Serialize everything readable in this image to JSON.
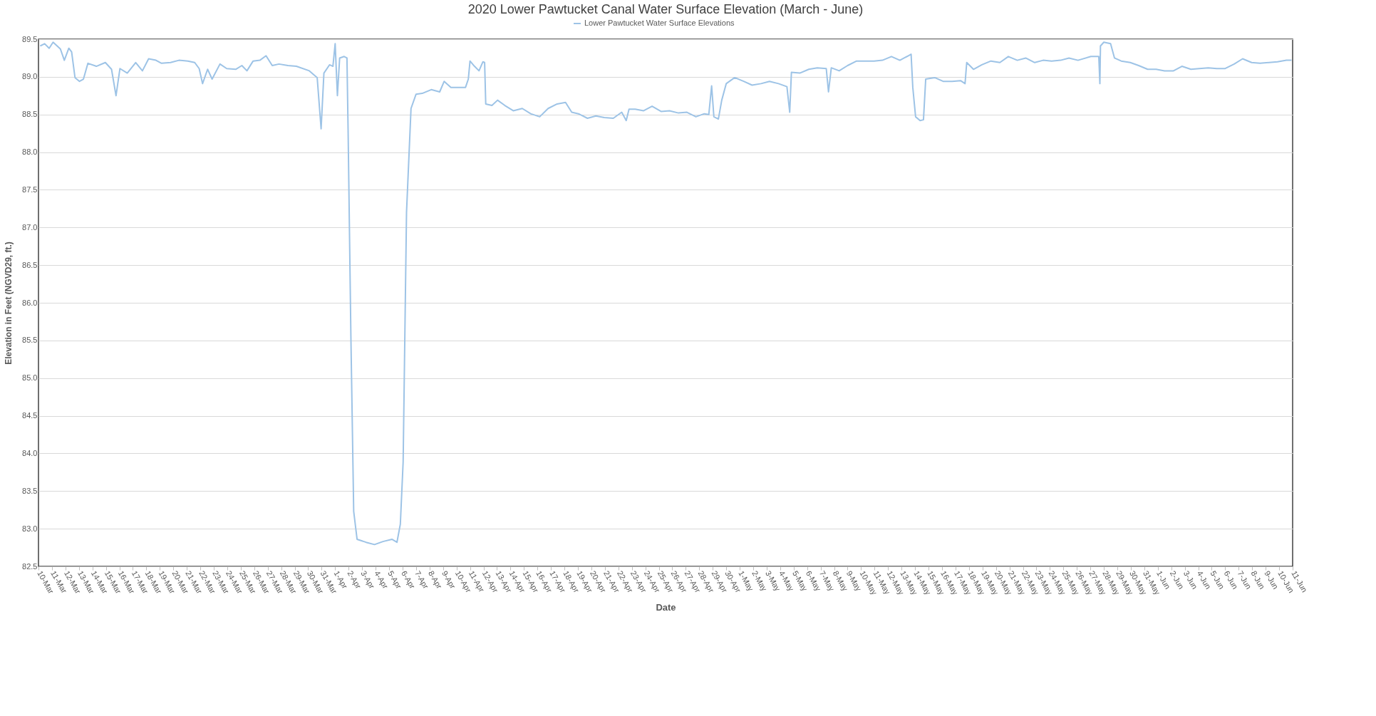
{
  "chart_data": {
    "type": "line",
    "title": "2020 Lower Pawtucket Canal Water Surface Elevation (March - June)",
    "xlabel": "Date",
    "ylabel": "Elevation in Feet (NGVD29, ft.)",
    "legend": "top",
    "grid": "y",
    "ylim": [
      82.5,
      89.5
    ],
    "yticks": [
      {
        "value": 82.5,
        "label": "82.5"
      },
      {
        "value": 83,
        "label": "83.0"
      },
      {
        "value": 83.5,
        "label": "83.5"
      },
      {
        "value": 84,
        "label": "84.0"
      },
      {
        "value": 84.5,
        "label": "84.5"
      },
      {
        "value": 85,
        "label": "85.0"
      },
      {
        "value": 85.5,
        "label": "85.5"
      },
      {
        "value": 86,
        "label": "86.0"
      },
      {
        "value": 86.5,
        "label": "86.5"
      },
      {
        "value": 87,
        "label": "87.0"
      },
      {
        "value": 87.5,
        "label": "87.5"
      },
      {
        "value": 88,
        "label": "88.0"
      },
      {
        "value": 88.5,
        "label": "88.5"
      },
      {
        "value": 89,
        "label": "89.0"
      },
      {
        "value": 89.5,
        "label": "89.5"
      }
    ],
    "xlim": [
      "2020-03-10",
      "2020-06-11"
    ],
    "xticks": [
      {
        "value": "2020-03-10",
        "label": "10-Mar"
      },
      {
        "value": "2020-03-11",
        "label": "11-Mar"
      },
      {
        "value": "2020-03-12",
        "label": "12-Mar"
      },
      {
        "value": "2020-03-13",
        "label": "13-Mar"
      },
      {
        "value": "2020-03-14",
        "label": "14-Mar"
      },
      {
        "value": "2020-03-15",
        "label": "15-Mar"
      },
      {
        "value": "2020-03-16",
        "label": "16-Mar"
      },
      {
        "value": "2020-03-17",
        "label": "17-Mar"
      },
      {
        "value": "2020-03-18",
        "label": "18-Mar"
      },
      {
        "value": "2020-03-19",
        "label": "19-Mar"
      },
      {
        "value": "2020-03-20",
        "label": "20-Mar"
      },
      {
        "value": "2020-03-21",
        "label": "21-Mar"
      },
      {
        "value": "2020-03-22",
        "label": "22-Mar"
      },
      {
        "value": "2020-03-23",
        "label": "23-Mar"
      },
      {
        "value": "2020-03-24",
        "label": "24-Mar"
      },
      {
        "value": "2020-03-25",
        "label": "25-Mar"
      },
      {
        "value": "2020-03-26",
        "label": "26-Mar"
      },
      {
        "value": "2020-03-27",
        "label": "27-Mar"
      },
      {
        "value": "2020-03-28",
        "label": "28-Mar"
      },
      {
        "value": "2020-03-29",
        "label": "29-Mar"
      },
      {
        "value": "2020-03-30",
        "label": "30-Mar"
      },
      {
        "value": "2020-03-31",
        "label": "31-Mar"
      },
      {
        "value": "2020-04-01",
        "label": "1-Apr"
      },
      {
        "value": "2020-04-02",
        "label": "2-Apr"
      },
      {
        "value": "2020-04-03",
        "label": "3-Apr"
      },
      {
        "value": "2020-04-04",
        "label": "4-Apr"
      },
      {
        "value": "2020-04-05",
        "label": "5-Apr"
      },
      {
        "value": "2020-04-06",
        "label": "6-Apr"
      },
      {
        "value": "2020-04-07",
        "label": "7-Apr"
      },
      {
        "value": "2020-04-08",
        "label": "8-Apr"
      },
      {
        "value": "2020-04-09",
        "label": "9-Apr"
      },
      {
        "value": "2020-04-10",
        "label": "10-Apr"
      },
      {
        "value": "2020-04-11",
        "label": "11-Apr"
      },
      {
        "value": "2020-04-12",
        "label": "12-Apr"
      },
      {
        "value": "2020-04-13",
        "label": "13-Apr"
      },
      {
        "value": "2020-04-14",
        "label": "14-Apr"
      },
      {
        "value": "2020-04-15",
        "label": "15-Apr"
      },
      {
        "value": "2020-04-16",
        "label": "16-Apr"
      },
      {
        "value": "2020-04-17",
        "label": "17-Apr"
      },
      {
        "value": "2020-04-18",
        "label": "18-Apr"
      },
      {
        "value": "2020-04-19",
        "label": "19-Apr"
      },
      {
        "value": "2020-04-20",
        "label": "20-Apr"
      },
      {
        "value": "2020-04-21",
        "label": "21-Apr"
      },
      {
        "value": "2020-04-22",
        "label": "22-Apr"
      },
      {
        "value": "2020-04-23",
        "label": "23-Apr"
      },
      {
        "value": "2020-04-24",
        "label": "24-Apr"
      },
      {
        "value": "2020-04-25",
        "label": "25-Apr"
      },
      {
        "value": "2020-04-26",
        "label": "26-Apr"
      },
      {
        "value": "2020-04-27",
        "label": "27-Apr"
      },
      {
        "value": "2020-04-28",
        "label": "28-Apr"
      },
      {
        "value": "2020-04-29",
        "label": "29-Apr"
      },
      {
        "value": "2020-04-30",
        "label": "30-Apr"
      },
      {
        "value": "2020-05-01",
        "label": "1-May"
      },
      {
        "value": "2020-05-02",
        "label": "2-May"
      },
      {
        "value": "2020-05-03",
        "label": "3-May"
      },
      {
        "value": "2020-05-04",
        "label": "4-May"
      },
      {
        "value": "2020-05-05",
        "label": "5-May"
      },
      {
        "value": "2020-05-06",
        "label": "6-May"
      },
      {
        "value": "2020-05-07",
        "label": "7-May"
      },
      {
        "value": "2020-05-08",
        "label": "8-May"
      },
      {
        "value": "2020-05-09",
        "label": "9-May"
      },
      {
        "value": "2020-05-10",
        "label": "10-May"
      },
      {
        "value": "2020-05-11",
        "label": "11-May"
      },
      {
        "value": "2020-05-12",
        "label": "12-May"
      },
      {
        "value": "2020-05-13",
        "label": "13-May"
      },
      {
        "value": "2020-05-14",
        "label": "14-May"
      },
      {
        "value": "2020-05-15",
        "label": "15-May"
      },
      {
        "value": "2020-05-16",
        "label": "16-May"
      },
      {
        "value": "2020-05-17",
        "label": "17-May"
      },
      {
        "value": "2020-05-18",
        "label": "18-May"
      },
      {
        "value": "2020-05-19",
        "label": "19-May"
      },
      {
        "value": "2020-05-20",
        "label": "20-May"
      },
      {
        "value": "2020-05-21",
        "label": "21-May"
      },
      {
        "value": "2020-05-22",
        "label": "22-May"
      },
      {
        "value": "2020-05-23",
        "label": "23-May"
      },
      {
        "value": "2020-05-24",
        "label": "24-May"
      },
      {
        "value": "2020-05-25",
        "label": "25-May"
      },
      {
        "value": "2020-05-26",
        "label": "26-May"
      },
      {
        "value": "2020-05-27",
        "label": "27-May"
      },
      {
        "value": "2020-05-28",
        "label": "28-May"
      },
      {
        "value": "2020-05-29",
        "label": "29-May"
      },
      {
        "value": "2020-05-30",
        "label": "30-May"
      },
      {
        "value": "2020-05-31",
        "label": "31-May"
      },
      {
        "value": "2020-06-01",
        "label": "1-Jun"
      },
      {
        "value": "2020-06-02",
        "label": "2-Jun"
      },
      {
        "value": "2020-06-03",
        "label": "3-Jun"
      },
      {
        "value": "2020-06-04",
        "label": "4-Jun"
      },
      {
        "value": "2020-06-05",
        "label": "5-Jun"
      },
      {
        "value": "2020-06-06",
        "label": "6-Jun"
      },
      {
        "value": "2020-06-07",
        "label": "7-Jun"
      },
      {
        "value": "2020-06-08",
        "label": "8-Jun"
      },
      {
        "value": "2020-06-09",
        "label": "9-Jun"
      },
      {
        "value": "2020-06-10",
        "label": "10-Jun"
      },
      {
        "value": "2020-06-11",
        "label": "11-Jun"
      }
    ],
    "series": [
      {
        "name": "Lower Pawtucket Water Surface Elevations",
        "color": "#9dc3e6",
        "line_style": "solid",
        "marker": "none",
        "x": [
          "2020-03-10T03:00",
          "2020-03-10T11:00",
          "2020-03-10T19:00",
          "2020-03-11T02:00",
          "2020-03-11T15:00",
          "2020-03-11T22:00",
          "2020-03-12T06:00",
          "2020-03-12T11:00",
          "2020-03-12T17:00",
          "2020-03-13T01:00",
          "2020-03-13T08:00",
          "2020-03-13T16:00",
          "2020-03-14T07:00",
          "2020-03-14T23:00",
          "2020-03-15T10:00",
          "2020-03-15T18:00",
          "2020-03-16T01:00",
          "2020-03-16T14:00",
          "2020-03-17T05:00",
          "2020-03-17T17:00",
          "2020-03-18T04:00",
          "2020-03-18T17:00",
          "2020-03-19T03:00",
          "2020-03-19T19:00",
          "2020-03-20T10:00",
          "2020-03-21T02:00",
          "2020-03-21T14:00",
          "2020-03-21T22:00",
          "2020-03-22T04:00",
          "2020-03-22T13:00",
          "2020-03-22T21:00",
          "2020-03-23T11:00",
          "2020-03-23T23:00",
          "2020-03-24T15:00",
          "2020-03-25T02:00",
          "2020-03-25T11:00",
          "2020-03-25T22:00",
          "2020-03-26T10:00",
          "2020-03-26T21:00",
          "2020-03-27T08:00",
          "2020-03-27T20:00",
          "2020-03-28T12:00",
          "2020-03-29T03:00",
          "2020-03-30T02:00",
          "2020-03-30T16:00",
          "2020-03-30T23:00",
          "2020-03-31T04:00",
          "2020-03-31T14:00",
          "2020-03-31T20:00",
          "2020-04-01T00:00",
          "2020-04-01T04:00",
          "2020-04-01T08:00",
          "2020-04-01T16:00",
          "2020-04-01T21:00",
          "2020-04-01T23:00",
          "2020-04-02T04:00",
          "2020-04-02T09:00",
          "2020-04-02T15:00",
          "2020-04-03T07:00",
          "2020-04-03T22:00",
          "2020-04-04T13:00",
          "2020-04-05T05:00",
          "2020-04-05T14:00",
          "2020-04-05T20:00",
          "2020-04-06T01:00",
          "2020-04-06T07:00",
          "2020-04-06T15:00",
          "2020-04-07T00:00",
          "2020-04-07T11:00",
          "2020-04-08T03:00",
          "2020-04-08T18:00",
          "2020-04-09T02:00",
          "2020-04-09T14:00",
          "2020-04-10T04:00",
          "2020-04-10T16:00",
          "2020-04-10T21:00",
          "2020-04-11T00:00",
          "2020-04-11T08:00",
          "2020-04-11T16:00",
          "2020-04-11T23:00",
          "2020-04-12T02:00",
          "2020-04-12T04:00",
          "2020-04-12T15:00",
          "2020-04-13T01:00",
          "2020-04-13T14:00",
          "2020-04-14T05:00",
          "2020-04-14T21:00",
          "2020-04-15T12:00",
          "2020-04-16T04:00",
          "2020-04-16T19:00",
          "2020-04-17T11:00",
          "2020-04-18T02:00",
          "2020-04-18T13:00",
          "2020-04-19T01:00",
          "2020-04-19T17:00",
          "2020-04-20T08:00",
          "2020-04-20T23:00",
          "2020-04-21T15:00",
          "2020-04-22T06:00",
          "2020-04-22T14:00",
          "2020-04-22T19:00",
          "2020-04-23T06:00",
          "2020-04-23T21:00",
          "2020-04-24T12:00",
          "2020-04-25T04:00",
          "2020-04-25T19:00",
          "2020-04-26T11:00",
          "2020-04-27T02:00",
          "2020-04-27T18:00",
          "2020-04-28T09:00",
          "2020-04-28T17:00",
          "2020-04-28T22:00",
          "2020-04-29T02:00",
          "2020-04-29T10:00",
          "2020-04-29T16:00",
          "2020-04-30T00:00",
          "2020-04-30T15:00",
          "2020-05-01T07:00",
          "2020-05-01T22:00",
          "2020-05-02T14:00",
          "2020-05-03T05:00",
          "2020-05-03T21:00",
          "2020-05-04T12:00",
          "2020-05-04T17:00",
          "2020-05-04T20:00",
          "2020-05-05T11:00",
          "2020-05-06T03:00",
          "2020-05-06T18:00",
          "2020-05-07T10:00",
          "2020-05-07T14:00",
          "2020-05-07T19:00",
          "2020-05-08T09:00",
          "2020-05-09T00:00",
          "2020-05-09T16:00",
          "2020-05-10T07:00",
          "2020-05-10T23:00",
          "2020-05-11T14:00",
          "2020-05-12T06:00",
          "2020-05-12T21:00",
          "2020-05-13T12:00",
          "2020-05-13T17:00",
          "2020-05-13T20:00",
          "2020-05-14T01:00",
          "2020-05-14T09:00",
          "2020-05-14T15:00",
          "2020-05-14T19:00",
          "2020-05-15T11:00",
          "2020-05-16T02:00",
          "2020-05-16T18:00",
          "2020-05-17T09:00",
          "2020-05-17T17:00",
          "2020-05-17T20:00",
          "2020-05-18T08:00",
          "2020-05-18T23:00",
          "2020-05-19T15:00",
          "2020-05-20T07:00",
          "2020-05-20T22:00",
          "2020-05-21T14:00",
          "2020-05-22T05:00",
          "2020-05-22T21:00",
          "2020-05-23T12:00",
          "2020-05-24T03:00",
          "2020-05-24T19:00",
          "2020-05-25T10:00",
          "2020-05-26T02:00",
          "2020-05-27T01:00",
          "2020-05-27T15:00",
          "2020-05-27T17:00",
          "2020-05-27T18:00",
          "2020-05-28T00:00",
          "2020-05-28T12:00",
          "2020-05-28T19:00",
          "2020-05-29T07:00",
          "2020-05-29T23:00",
          "2020-05-30T14:00",
          "2020-05-31T06:00",
          "2020-05-31T21:00",
          "2020-06-01T12:00",
          "2020-06-02T04:00",
          "2020-06-02T19:00",
          "2020-06-03T11:00",
          "2020-06-04T02:00",
          "2020-06-04T18:00",
          "2020-06-05T09:00",
          "2020-06-06T00:00",
          "2020-06-06T16:00",
          "2020-06-07T07:00",
          "2020-06-07T23:00",
          "2020-06-08T14:00",
          "2020-06-09T06:00",
          "2020-06-09T21:00",
          "2020-06-10T13:00",
          "2020-06-10T22:00"
        ],
        "values": [
          89.41,
          89.44,
          89.38,
          89.46,
          89.37,
          89.22,
          89.38,
          89.33,
          88.99,
          88.94,
          88.97,
          89.18,
          89.14,
          89.19,
          89.1,
          88.75,
          89.11,
          89.05,
          89.19,
          89.08,
          89.24,
          89.22,
          89.18,
          89.19,
          89.22,
          89.21,
          89.19,
          89.11,
          88.91,
          89.1,
          88.97,
          89.17,
          89.11,
          89.1,
          89.15,
          89.08,
          89.21,
          89.22,
          89.28,
          89.15,
          89.17,
          89.15,
          89.14,
          89.08,
          88.99,
          88.31,
          89.05,
          89.16,
          89.14,
          89.44,
          88.75,
          89.25,
          89.27,
          89.25,
          88.31,
          85.55,
          83.23,
          82.86,
          82.82,
          82.79,
          82.83,
          82.86,
          82.82,
          83.06,
          83.89,
          87.2,
          88.58,
          88.77,
          88.78,
          88.83,
          88.8,
          88.94,
          88.86,
          88.86,
          88.86,
          88.97,
          89.21,
          89.14,
          89.08,
          89.2,
          89.19,
          88.64,
          88.62,
          88.69,
          88.62,
          88.55,
          88.58,
          88.51,
          88.47,
          88.58,
          88.64,
          88.66,
          88.53,
          88.51,
          88.45,
          88.48,
          88.46,
          88.45,
          88.53,
          88.42,
          88.57,
          88.57,
          88.55,
          88.61,
          88.54,
          88.55,
          88.52,
          88.53,
          88.47,
          88.51,
          88.5,
          88.88,
          88.47,
          88.44,
          88.69,
          88.91,
          88.99,
          88.94,
          88.89,
          88.91,
          88.94,
          88.91,
          88.87,
          88.53,
          89.06,
          89.05,
          89.1,
          89.12,
          89.11,
          88.8,
          89.12,
          89.08,
          89.15,
          89.21,
          89.21,
          89.21,
          89.22,
          89.27,
          89.22,
          89.28,
          89.3,
          88.86,
          88.47,
          88.42,
          88.43,
          88.97,
          88.99,
          88.94,
          88.94,
          88.95,
          88.91,
          89.19,
          89.1,
          89.16,
          89.21,
          89.19,
          89.27,
          89.22,
          89.25,
          89.19,
          89.22,
          89.21,
          89.22,
          89.25,
          89.22,
          89.27,
          89.27,
          88.91,
          89.41,
          89.46,
          89.44,
          89.25,
          89.21,
          89.19,
          89.15,
          89.1,
          89.1,
          89.08,
          89.08,
          89.14,
          89.1,
          89.11,
          89.12,
          89.11,
          89.11,
          89.17,
          89.24,
          89.19,
          89.18,
          89.19,
          89.2,
          89.22,
          89.22
        ]
      }
    ]
  }
}
